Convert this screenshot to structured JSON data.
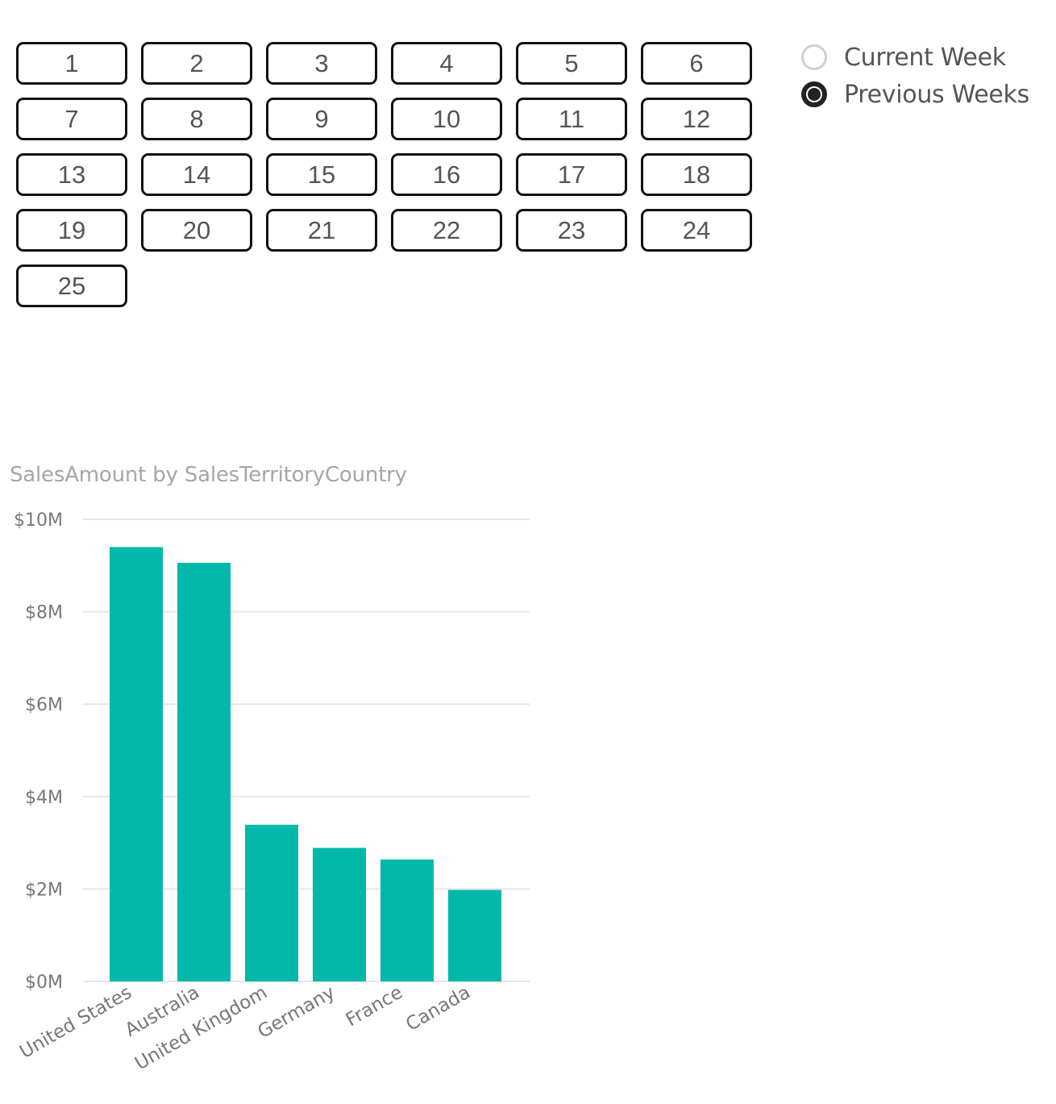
{
  "week_slicer": {
    "weeks": [
      "1",
      "2",
      "3",
      "4",
      "5",
      "6",
      "7",
      "8",
      "9",
      "10",
      "11",
      "12",
      "13",
      "14",
      "15",
      "16",
      "17",
      "18",
      "19",
      "20",
      "21",
      "22",
      "23",
      "24",
      "25"
    ]
  },
  "period_slicer": {
    "options": [
      {
        "label": "Current Week",
        "selected": false
      },
      {
        "label": "Previous Weeks",
        "selected": true
      }
    ]
  },
  "chart": {
    "title": "SalesAmount by SalesTerritoryCountry"
  },
  "chart_data": {
    "type": "bar",
    "title": "SalesAmount by SalesTerritoryCountry",
    "xlabel": "",
    "ylabel": "",
    "categories": [
      "United States",
      "Australia",
      "United Kingdom",
      "Germany",
      "France",
      "Canada"
    ],
    "values": [
      9400000,
      9060000,
      3390000,
      2890000,
      2640000,
      1980000
    ],
    "ylim": [
      0,
      10000000
    ],
    "yticks": [
      0,
      2000000,
      4000000,
      6000000,
      8000000,
      10000000
    ],
    "ytick_labels": [
      "$0M",
      "$2M",
      "$4M",
      "$6M",
      "$8M",
      "$10M"
    ],
    "bar_color": "#01B8AA",
    "grid": true,
    "legend": "none"
  }
}
